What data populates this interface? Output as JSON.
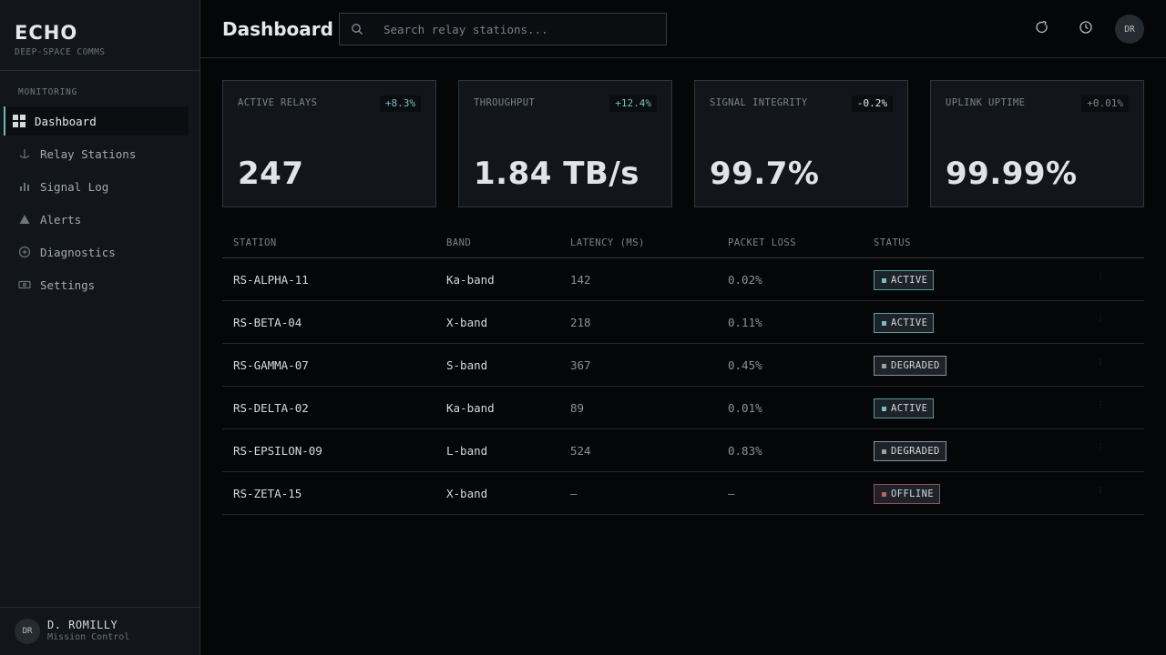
{
  "brand": {
    "title": "ECHO",
    "subtitle": "DEEP-SPACE COMMS"
  },
  "sidebar": {
    "section_label": "MONITORING",
    "items": [
      {
        "label": "Dashboard",
        "icon": "grid-icon",
        "active": true
      },
      {
        "label": "Relay Stations",
        "icon": "antenna-icon",
        "active": false
      },
      {
        "label": "Signal Log",
        "icon": "bar-chart-icon",
        "active": false
      },
      {
        "label": "Alerts",
        "icon": "warning-icon",
        "active": false
      },
      {
        "label": "Diagnostics",
        "icon": "plus-circle-icon",
        "active": false
      },
      {
        "label": "Settings",
        "icon": "ticket-icon",
        "active": false
      }
    ],
    "user": {
      "initials": "DR",
      "name": "D. ROMILLY",
      "role": "Mission Control"
    }
  },
  "header": {
    "title": "Dashboard",
    "search": {
      "placeholder": "Search relay stations...",
      "value": ""
    },
    "avatar_initials": "DR",
    "icons": [
      "refresh-icon",
      "clock-icon"
    ]
  },
  "metrics": [
    {
      "label": "ACTIVE RELAYS",
      "delta": "+8.3%",
      "value": "247",
      "trend": "up"
    },
    {
      "label": "THROUGHPUT",
      "delta": "+12.4%",
      "value": "1.84 TB/s",
      "trend": "up"
    },
    {
      "label": "SIGNAL INTEGRITY",
      "delta": "-0.2%",
      "value": "99.7%",
      "trend": "down"
    },
    {
      "label": "UPLINK UPTIME",
      "delta": "+0.01%",
      "value": "99.99%",
      "trend": "flat"
    }
  ],
  "colors": {
    "accent": "#6fb7b9",
    "delta_up": "#6fc1c3",
    "delta_down": "#e6e9ec",
    "delta_flat": "#7c838b",
    "status_active": "#4f9ea1",
    "status_degraded": "#8d9299",
    "status_offline": "#9b4d55"
  },
  "table": {
    "columns": [
      "STATION",
      "BAND",
      "LATENCY (MS)",
      "PACKET LOSS",
      "STATUS"
    ],
    "rows": [
      {
        "station": "RS-ALPHA-11",
        "band": "Ka-band",
        "latency": "142",
        "loss": "0.02%",
        "status": "ACTIVE"
      },
      {
        "station": "RS-BETA-04",
        "band": "X-band",
        "latency": "218",
        "loss": "0.11%",
        "status": "ACTIVE"
      },
      {
        "station": "RS-GAMMA-07",
        "band": "S-band",
        "latency": "367",
        "loss": "0.45%",
        "status": "DEGRADED"
      },
      {
        "station": "RS-DELTA-02",
        "band": "Ka-band",
        "latency": "89",
        "loss": "0.01%",
        "status": "ACTIVE"
      },
      {
        "station": "RS-EPSILON-09",
        "band": "L-band",
        "latency": "524",
        "loss": "0.83%",
        "status": "DEGRADED"
      },
      {
        "station": "RS-ZETA-15",
        "band": "X-band",
        "latency": "—",
        "loss": "—",
        "status": "OFFLINE"
      }
    ]
  }
}
